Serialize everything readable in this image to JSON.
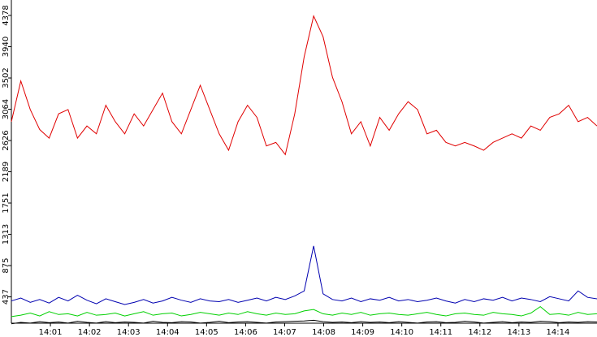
{
  "chart_data": {
    "type": "line",
    "xlim": [
      0,
      15
    ],
    "xticks": [
      {
        "value": 1,
        "label": "14:01"
      },
      {
        "value": 2,
        "label": "14:02"
      },
      {
        "value": 3,
        "label": "14:03"
      },
      {
        "value": 4,
        "label": "14:04"
      },
      {
        "value": 5,
        "label": "14:05"
      },
      {
        "value": 6,
        "label": "14:06"
      },
      {
        "value": 7,
        "label": "14:07"
      },
      {
        "value": 8,
        "label": "14:08"
      },
      {
        "value": 9,
        "label": "14:09"
      },
      {
        "value": 10,
        "label": "14:10"
      },
      {
        "value": 11,
        "label": "14:11"
      },
      {
        "value": 12,
        "label": "14:12"
      },
      {
        "value": 13,
        "label": "14:13"
      },
      {
        "value": 14,
        "label": "14:14"
      }
    ],
    "ylim": [
      0,
      4378
    ],
    "yticks": [
      437,
      875,
      1313,
      1751,
      2189,
      2626,
      3064,
      3502,
      3940,
      4378
    ],
    "series": [
      {
        "color": "#e00000",
        "values": [
          2890,
          3460,
          3060,
          2780,
          2660,
          3000,
          3060,
          2660,
          2830,
          2720,
          3120,
          2890,
          2720,
          3000,
          2830,
          3060,
          3290,
          2890,
          2720,
          3060,
          3400,
          3060,
          2720,
          2490,
          2890,
          3120,
          2950,
          2550,
          2600,
          2430,
          3000,
          3800,
          4370,
          4080,
          3510,
          3170,
          2720,
          2890,
          2550,
          2950,
          2770,
          3000,
          3170,
          3060,
          2720,
          2770,
          2600,
          2550,
          2600,
          2550,
          2490,
          2600,
          2660,
          2720,
          2660,
          2830,
          2770,
          2950,
          3000,
          3120,
          2890,
          2950,
          2830
        ]
      },
      {
        "color": "#0000b0",
        "values": [
          380,
          420,
          360,
          400,
          350,
          430,
          380,
          460,
          390,
          340,
          410,
          370,
          330,
          360,
          400,
          350,
          380,
          430,
          390,
          360,
          410,
          380,
          370,
          400,
          360,
          390,
          420,
          380,
          430,
          400,
          450,
          520,
          1150,
          480,
          400,
          380,
          420,
          370,
          410,
          390,
          430,
          380,
          400,
          370,
          390,
          420,
          380,
          350,
          400,
          370,
          410,
          390,
          430,
          380,
          420,
          400,
          370,
          440,
          410,
          380,
          520,
          430,
          410
        ]
      },
      {
        "color": "#00d000",
        "values": [
          160,
          180,
          210,
          170,
          230,
          190,
          200,
          170,
          220,
          180,
          190,
          210,
          170,
          200,
          230,
          180,
          200,
          210,
          170,
          190,
          220,
          200,
          180,
          210,
          190,
          230,
          200,
          180,
          210,
          190,
          200,
          240,
          260,
          200,
          180,
          210,
          190,
          220,
          180,
          200,
          210,
          190,
          180,
          200,
          220,
          190,
          170,
          200,
          210,
          190,
          180,
          220,
          200,
          190,
          170,
          210,
          300,
          190,
          200,
          180,
          220,
          190,
          200
        ]
      },
      {
        "color": "#000000",
        "values": [
          60,
          80,
          70,
          90,
          75,
          85,
          70,
          95,
          80,
          70,
          90,
          75,
          85,
          80,
          70,
          95,
          80,
          75,
          90,
          85,
          70,
          80,
          95,
          75,
          85,
          90,
          80,
          70,
          85,
          90,
          95,
          100,
          110,
          90,
          80,
          85,
          75,
          90,
          80,
          85,
          75,
          90,
          80,
          70,
          85,
          90,
          75,
          80,
          95,
          85,
          70,
          80,
          90,
          75,
          85,
          80,
          95,
          90,
          75,
          85,
          80,
          90,
          85
        ]
      }
    ]
  }
}
